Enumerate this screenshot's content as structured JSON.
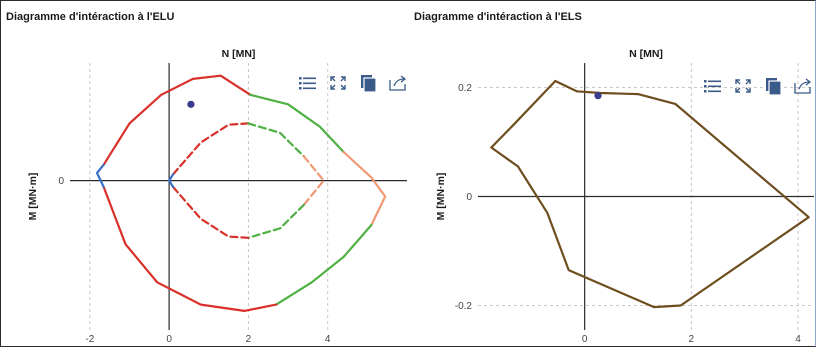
{
  "left_panel": {
    "title": "Diagramme d'intéraction à l'ELU",
    "toolbar": {
      "icons": [
        "list-icon",
        "fit-to-screen-icon",
        "copy-icon",
        "export-icon"
      ],
      "color": "#3a5a8a"
    }
  },
  "right_panel": {
    "title": "Diagramme d'intéraction à l'ELS",
    "toolbar": {
      "icons": [
        "list-icon",
        "fit-to-screen-icon",
        "copy-icon",
        "export-icon"
      ],
      "color": "#3a5a8a"
    }
  },
  "chart_data": [
    {
      "type": "line",
      "title": "Diagramme d'intéraction à l'ELU",
      "xlabel": "N [MN]",
      "ylabel": "M [MN·m]",
      "xlim": [
        -2.5,
        6.0
      ],
      "ylim": [
        -2.35,
        1.85
      ],
      "xticks": [
        -2,
        0,
        2,
        4
      ],
      "yticks": [
        0
      ],
      "grid": true,
      "axis_color": "#2b2b2b",
      "grid_color": "#c8c8c8",
      "point": {
        "x": 0.55,
        "y": 1.2,
        "color": "#3b3b8f"
      },
      "series": [
        {
          "segment": "outer-upper",
          "color": "#d9302a",
          "dashed": false,
          "x": [
            -1.65,
            -1.0,
            -0.2,
            0.6,
            1.3,
            2.05
          ],
          "y": [
            0.25,
            0.9,
            1.35,
            1.6,
            1.65,
            1.35
          ]
        },
        {
          "segment": "outer-upper-right",
          "color": "#4fb043",
          "dashed": false,
          "x": [
            2.05,
            3.0,
            3.8,
            4.4
          ],
          "y": [
            1.35,
            1.2,
            0.85,
            0.45
          ]
        },
        {
          "segment": "outer-right",
          "color": "#f09874",
          "dashed": false,
          "x": [
            4.4,
            5.1,
            5.45,
            5.1
          ],
          "y": [
            0.45,
            0.05,
            -0.25,
            -0.7
          ]
        },
        {
          "segment": "outer-lower-right",
          "color": "#4fb043",
          "dashed": false,
          "x": [
            5.1,
            4.4,
            3.6,
            2.7
          ],
          "y": [
            -0.7,
            -1.2,
            -1.6,
            -1.95
          ]
        },
        {
          "segment": "outer-lower",
          "color": "#d9302a",
          "dashed": false,
          "x": [
            2.7,
            1.9,
            0.8,
            -0.3,
            -1.1,
            -1.65
          ],
          "y": [
            -1.95,
            -2.05,
            -1.95,
            -1.6,
            -1.0,
            -0.1
          ]
        },
        {
          "segment": "outer-tip",
          "color": "#3a6fc8",
          "dashed": false,
          "x": [
            -1.65,
            -1.82,
            -1.65
          ],
          "y": [
            -0.1,
            0.12,
            0.25
          ]
        },
        {
          "segment": "inner-upper",
          "color": "#d9302a",
          "dashed": true,
          "x": [
            0.1,
            0.8,
            1.5,
            2.0
          ],
          "y": [
            0.1,
            0.6,
            0.88,
            0.9
          ]
        },
        {
          "segment": "inner-upper-right",
          "color": "#4fb043",
          "dashed": true,
          "x": [
            2.0,
            2.8,
            3.4
          ],
          "y": [
            0.9,
            0.75,
            0.38
          ]
        },
        {
          "segment": "inner-right",
          "color": "#f09874",
          "dashed": true,
          "x": [
            3.4,
            3.9,
            3.4
          ],
          "y": [
            0.38,
            0.0,
            -0.38
          ]
        },
        {
          "segment": "inner-lower-right",
          "color": "#4fb043",
          "dashed": true,
          "x": [
            3.4,
            2.8,
            2.0
          ],
          "y": [
            -0.38,
            -0.75,
            -0.9
          ]
        },
        {
          "segment": "inner-lower",
          "color": "#d9302a",
          "dashed": true,
          "x": [
            2.0,
            1.5,
            0.8,
            0.1
          ],
          "y": [
            -0.9,
            -0.88,
            -0.6,
            -0.1
          ]
        },
        {
          "segment": "inner-tip",
          "color": "#3a6fc8",
          "dashed": false,
          "x": [
            0.1,
            0.0,
            0.1
          ],
          "y": [
            -0.1,
            0.0,
            0.1
          ]
        }
      ]
    },
    {
      "type": "line",
      "title": "Diagramme d'intéraction à l'ELS",
      "xlabel": "N [MN]",
      "ylabel": "M [MN·m]",
      "xlim": [
        -2.0,
        4.3
      ],
      "ylim": [
        -0.245,
        0.245
      ],
      "xticks": [
        0,
        2,
        4
      ],
      "yticks": [
        0.2,
        0,
        -0.2
      ],
      "ytick_labels": [
        "0.2",
        "0",
        "-0.2"
      ],
      "grid": true,
      "axis_color": "#2b2b2b",
      "grid_color": "#c8c8c8",
      "point": {
        "x": 0.25,
        "y": 0.185,
        "color": "#3b3b8f"
      },
      "series": [
        {
          "segment": "envelope",
          "color": "#6e4e1e",
          "dashed": false,
          "closed": true,
          "x": [
            -0.55,
            -0.15,
            0.3,
            1.0,
            1.7,
            4.2,
            1.8,
            1.3,
            -0.3,
            -0.7,
            -1.25,
            -1.75,
            -1.35,
            -0.55
          ],
          "y": [
            0.212,
            0.193,
            0.19,
            0.188,
            0.17,
            -0.038,
            -0.2,
            -0.203,
            -0.135,
            -0.03,
            0.055,
            0.09,
            0.13,
            0.212
          ]
        }
      ]
    }
  ]
}
